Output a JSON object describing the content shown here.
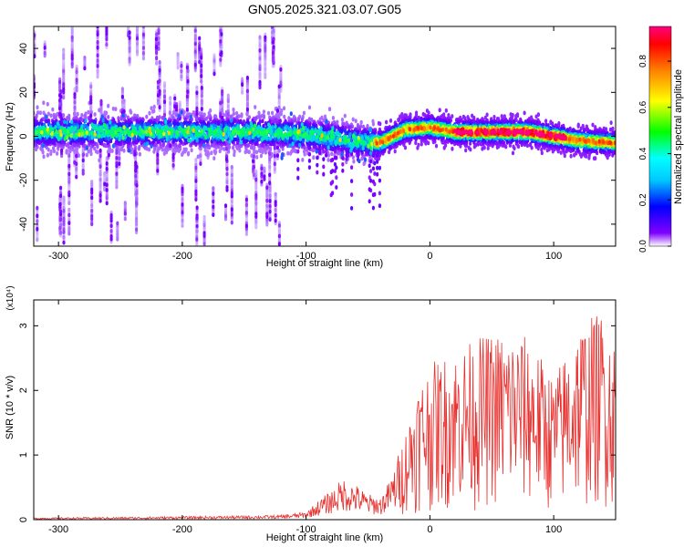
{
  "title": "GN05.2025.321.03.07.G05",
  "chart_data": [
    {
      "type": "heatmap",
      "xlabel": "Height of straight line (km)",
      "ylabel": "Frequency (Hz)",
      "xlim": [
        -320,
        150
      ],
      "ylim": [
        -50,
        50
      ],
      "xticks": [
        -300,
        -200,
        -100,
        0,
        100
      ],
      "yticks": [
        -40,
        -20,
        0,
        20,
        40
      ],
      "grid": false,
      "colorbar": {
        "label": "Normalized spectral amplitude",
        "range": [
          0,
          0.95
        ],
        "ticks": [
          0.0,
          0.2,
          0.4,
          0.6,
          0.8
        ],
        "colormap": [
          "#ffffff",
          "#8000ff",
          "#0000ff",
          "#00ffff",
          "#00ff00",
          "#ffff00",
          "#ff8000",
          "#ff0000",
          "#ff0080"
        ]
      },
      "dominant_frequency": {
        "x": [
          -320,
          -250,
          -200,
          -150,
          -100,
          -60,
          -40,
          -20,
          0,
          20,
          40,
          60,
          80,
          100,
          120,
          150
        ],
        "y": [
          2,
          2,
          2,
          2,
          1,
          -2,
          -3,
          3,
          4,
          2,
          2,
          2,
          2,
          0,
          -2,
          -3
        ]
      }
    },
    {
      "type": "line",
      "xlabel": "Height of straight line (km)",
      "ylabel": "SNR (10 * v/v)",
      "y_multiplier": "(x10⁴)",
      "xlim": [
        -320,
        150
      ],
      "ylim": [
        0,
        3.4
      ],
      "xticks": [
        -300,
        -200,
        -100,
        0,
        100
      ],
      "yticks": [
        0,
        1,
        2,
        3
      ],
      "color": "#e8302e",
      "grid": false,
      "envelope": {
        "x": [
          -320,
          -250,
          -200,
          -150,
          -120,
          -100,
          -90,
          -80,
          -70,
          -60,
          -50,
          -40,
          -30,
          -20,
          -10,
          0,
          20,
          40,
          60,
          80,
          100,
          120,
          140,
          150
        ],
        "y": [
          0.03,
          0.04,
          0.05,
          0.06,
          0.07,
          0.12,
          0.3,
          0.45,
          0.65,
          0.55,
          0.4,
          0.35,
          0.7,
          1.3,
          2.0,
          2.3,
          2.5,
          2.7,
          2.8,
          2.7,
          2.1,
          2.9,
          3.1,
          2.6
        ]
      }
    }
  ]
}
